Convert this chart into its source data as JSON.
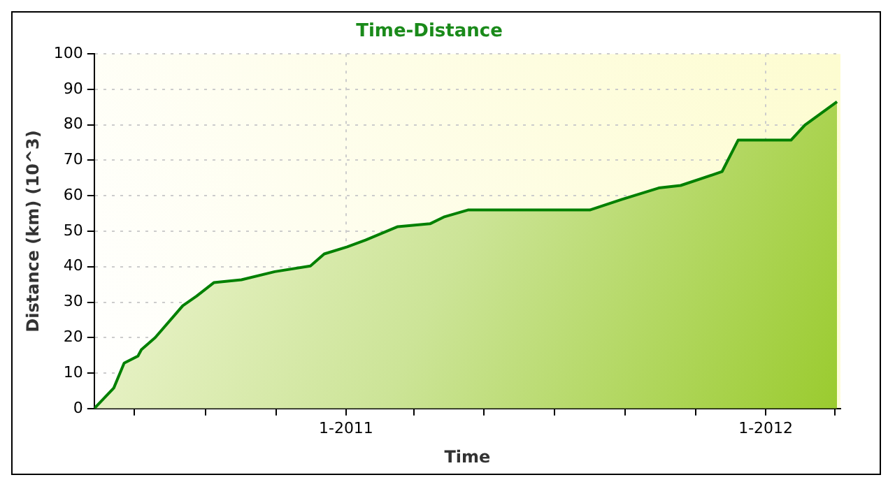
{
  "chart_data": {
    "type": "area",
    "title": "Time-Distance",
    "xlabel": "Time",
    "ylabel": "Distance (km) (10^3)",
    "x": [
      "2010-05-27",
      "2010-06-13",
      "2010-06-22",
      "2010-07-04",
      "2010-07-07",
      "2010-07-19",
      "2010-08-12",
      "2010-08-24",
      "2010-09-08",
      "2010-10-02",
      "2010-10-31",
      "2010-12-01",
      "2010-12-13",
      "2011-01-02",
      "2011-01-18",
      "2011-02-15",
      "2011-03-15",
      "2011-03-27",
      "2011-04-17",
      "2011-08-01",
      "2011-08-29",
      "2011-09-30",
      "2011-10-19",
      "2011-11-24",
      "2011-12-08",
      "2012-01-23",
      "2012-02-04",
      "2012-03-03"
    ],
    "series": [
      {
        "color": "#008000",
        "values": [
          0,
          5.8,
          12.8,
          14.8,
          16.6,
          20,
          29,
          31.7,
          35.5,
          36.3,
          38.6,
          40.2,
          43.6,
          45.6,
          47.5,
          51.3,
          52.1,
          54,
          56,
          56,
          59,
          62.2,
          62.9,
          66.8,
          75.7,
          75.7,
          79.9,
          86.5
        ]
      }
    ],
    "xlim": [
      "2010-05-27",
      "2012-03-06"
    ],
    "xticks": [
      {
        "value": "2010-07-01",
        "label": null
      },
      {
        "value": "2010-09-01",
        "label": null
      },
      {
        "value": "2010-11-01",
        "label": null
      },
      {
        "value": "2011-01-01",
        "label": "1-2011"
      },
      {
        "value": "2011-03-01",
        "label": null
      },
      {
        "value": "2011-05-01",
        "label": null
      },
      {
        "value": "2011-07-01",
        "label": null
      },
      {
        "value": "2011-09-01",
        "label": null
      },
      {
        "value": "2011-11-01",
        "label": null
      },
      {
        "value": "2012-01-01",
        "label": "1-2012"
      },
      {
        "value": "2012-03-01",
        "label": null
      }
    ],
    "ylim": [
      0,
      100
    ],
    "yticks": [
      0,
      10,
      20,
      30,
      40,
      50,
      60,
      70,
      80,
      90,
      100
    ],
    "grid": true,
    "legend": false,
    "marker": "none",
    "line_style": "solid"
  }
}
